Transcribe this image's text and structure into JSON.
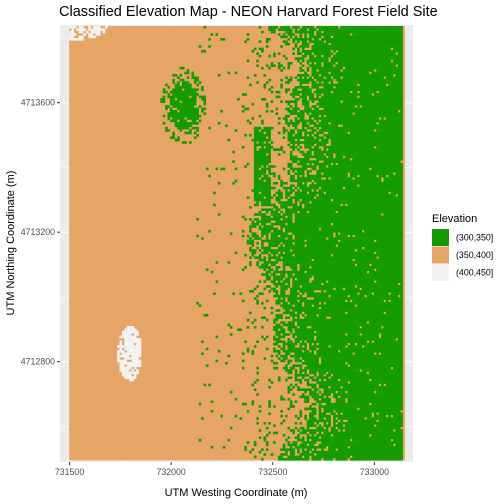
{
  "chart_data": {
    "type": "heatmap",
    "title": "Classified Elevation Map - NEON Harvard Forest Field Site",
    "xlabel": "UTM Westing Coordinate (m)",
    "ylabel": "UTM Northing Coordinate (m)",
    "xlim": [
      731453,
      733190
    ],
    "ylim": [
      4712490,
      4713840
    ],
    "x_ticks": [
      731500,
      732000,
      732500,
      733000
    ],
    "x_tick_labels": [
      "731500",
      "732000",
      "732500",
      "733000"
    ],
    "y_ticks": [
      4712800,
      4713200,
      4713600
    ],
    "y_tick_labels": [
      "4712800",
      "4713200",
      "4713600"
    ],
    "data_extent": {
      "x": [
        731498,
        733150
      ],
      "y": [
        4712495,
        4713837
      ]
    },
    "grid": true,
    "background": "#ebebeb",
    "legend": {
      "title": "Elevation",
      "position": "right",
      "entries": [
        {
          "label": "(300,350]",
          "color": "#129c00"
        },
        {
          "label": "(350,400]",
          "color": "#e6a565"
        },
        {
          "label": "(400,450]",
          "color": "#f2f2f2"
        }
      ]
    }
  }
}
